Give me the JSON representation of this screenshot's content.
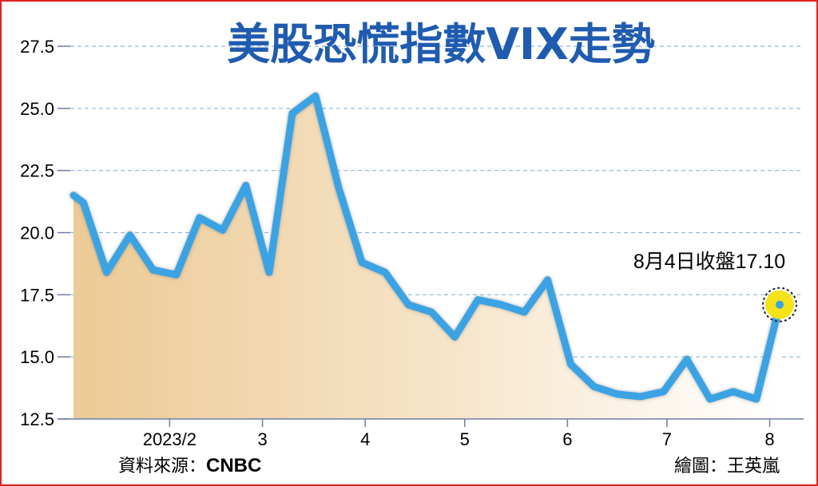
{
  "chart_data": {
    "type": "line",
    "title": "美股恐慌指數VIX走勢",
    "xlabel": "",
    "ylabel": "",
    "y_tick_labels": [
      "12.5",
      "15.0",
      "17.5",
      "20.0",
      "22.5",
      "25.0",
      "27.5"
    ],
    "y_ticks": [
      12.5,
      15.0,
      17.5,
      20.0,
      22.5,
      25.0,
      27.5
    ],
    "ylim": [
      12.5,
      27.5
    ],
    "x_tick_labels": [
      "2023/2",
      "3",
      "4",
      "5",
      "6",
      "7",
      "8"
    ],
    "x_ticks": [
      "2023-02-01",
      "2023-03-01",
      "2023-04-01",
      "2023-05-01",
      "2023-06-01",
      "2023-07-01",
      "2023-08-01"
    ],
    "xlim": [
      "2023-01-03",
      "2023-08-04"
    ],
    "grid": "horizontal dashed",
    "series": [
      {
        "name": "",
        "x": [
          "2023-01-03",
          "2023-01-06",
          "2023-01-13",
          "2023-01-20",
          "2023-01-27",
          "2023-02-03",
          "2023-02-10",
          "2023-02-17",
          "2023-02-24",
          "2023-03-03",
          "2023-03-10",
          "2023-03-17",
          "2023-03-24",
          "2023-03-31",
          "2023-04-07",
          "2023-04-14",
          "2023-04-21",
          "2023-04-28",
          "2023-05-05",
          "2023-05-12",
          "2023-05-19",
          "2023-05-26",
          "2023-06-02",
          "2023-06-09",
          "2023-06-16",
          "2023-06-23",
          "2023-06-30",
          "2023-07-07",
          "2023-07-14",
          "2023-07-21",
          "2023-07-28",
          "2023-08-04"
        ],
        "values": [
          21.5,
          21.2,
          18.4,
          19.9,
          18.5,
          18.3,
          20.6,
          20.1,
          21.9,
          18.4,
          24.8,
          25.5,
          21.8,
          18.8,
          18.4,
          17.1,
          16.8,
          15.8,
          17.3,
          17.1,
          16.8,
          18.1,
          14.7,
          13.8,
          13.5,
          13.4,
          13.6,
          14.9,
          13.3,
          13.6,
          13.3,
          17.1
        ]
      }
    ],
    "annotation": {
      "text": "8月4日收盤17.10",
      "x": "2023-08-04",
      "y": 17.1,
      "highlight_color": "#f5e31a"
    }
  },
  "source_label": "資料來源：",
  "source_name": "CNBC",
  "credit": "繪圖：王英嵐",
  "colors": {
    "line": "#3aa3e3",
    "title": "#1f5bb0",
    "border": "#e0231f",
    "fill_left": "#ecca95",
    "fill_right": "#ffffff",
    "grid": "#8fb8dc"
  }
}
